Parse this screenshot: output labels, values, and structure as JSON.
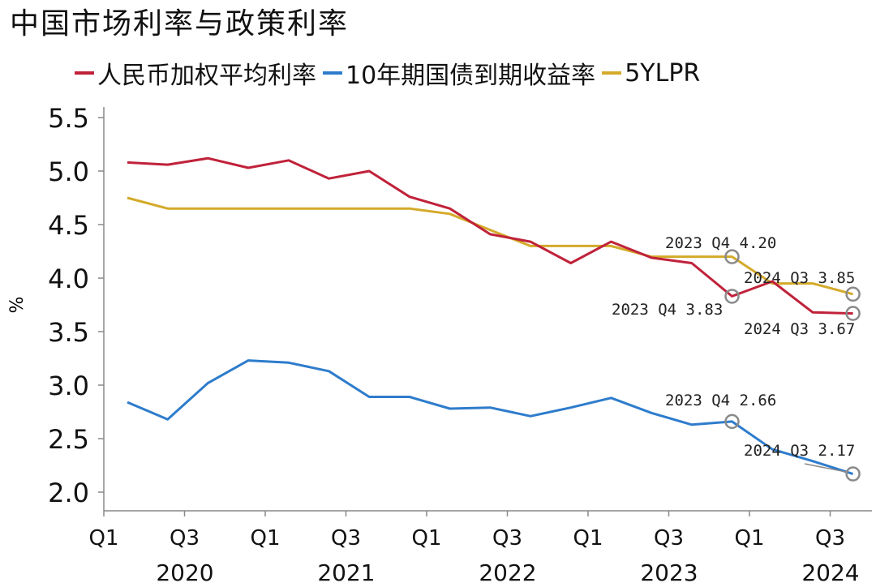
{
  "title": "中国市场利率与政策利率",
  "chart_data": {
    "type": "line",
    "ylabel": "%",
    "ylim": [
      2.0,
      5.5
    ],
    "yticks": [
      "5.5",
      "5.0",
      "4.5",
      "4.0",
      "3.5",
      "3.0",
      "2.5",
      "2.0"
    ],
    "quarter_ticks": [
      "Q1",
      "Q3",
      "Q1",
      "Q3",
      "Q1",
      "Q3",
      "Q1",
      "Q3",
      "Q1",
      "Q3"
    ],
    "year_ticks": [
      "2020",
      "2021",
      "2022",
      "2023",
      "2024"
    ],
    "x": [
      "2020Q1",
      "2020Q2",
      "2020Q3",
      "2020Q4",
      "2021Q1",
      "2021Q2",
      "2021Q3",
      "2021Q4",
      "2022Q1",
      "2022Q2",
      "2022Q3",
      "2022Q4",
      "2023Q1",
      "2023Q2",
      "2023Q3",
      "2023Q4",
      "2024Q1",
      "2024Q2",
      "2024Q3"
    ],
    "series": [
      {
        "name": "人民币加权平均利率",
        "color": "#c0223a",
        "values": [
          5.08,
          5.06,
          5.12,
          5.03,
          5.1,
          4.93,
          5.0,
          4.76,
          4.65,
          4.41,
          4.34,
          4.14,
          4.34,
          4.19,
          4.14,
          3.83,
          3.97,
          3.68,
          3.67
        ]
      },
      {
        "name": "10年期国债到期收益率",
        "color": "#2e7ccc",
        "values": [
          2.84,
          2.68,
          3.02,
          3.23,
          3.21,
          3.13,
          2.89,
          2.89,
          2.78,
          2.79,
          2.71,
          2.79,
          2.88,
          2.74,
          2.63,
          2.66,
          2.4,
          2.29,
          2.17
        ]
      },
      {
        "name": "5YLPR",
        "color": "#d4aa2a",
        "values": [
          4.75,
          4.65,
          4.65,
          4.65,
          4.65,
          4.65,
          4.65,
          4.65,
          4.6,
          4.45,
          4.3,
          4.3,
          4.3,
          4.2,
          4.2,
          4.2,
          3.95,
          3.95,
          3.85
        ]
      }
    ],
    "annotations": [
      {
        "label": "2023 Q4 4.20",
        "x": "2023Q4",
        "y": 4.2
      },
      {
        "label": "2024 Q3 3.85",
        "x": "2024Q3",
        "y": 3.85
      },
      {
        "label": "2023 Q4 3.83",
        "x": "2023Q4",
        "y": 3.83
      },
      {
        "label": "2024 Q3 3.67",
        "x": "2024Q3",
        "y": 3.67
      },
      {
        "label": "2023 Q4 2.66",
        "x": "2023Q4",
        "y": 2.66
      },
      {
        "label": "2024 Q3 2.17",
        "x": "2024Q3",
        "y": 2.17
      }
    ],
    "grid": false,
    "legend_position": "top"
  }
}
